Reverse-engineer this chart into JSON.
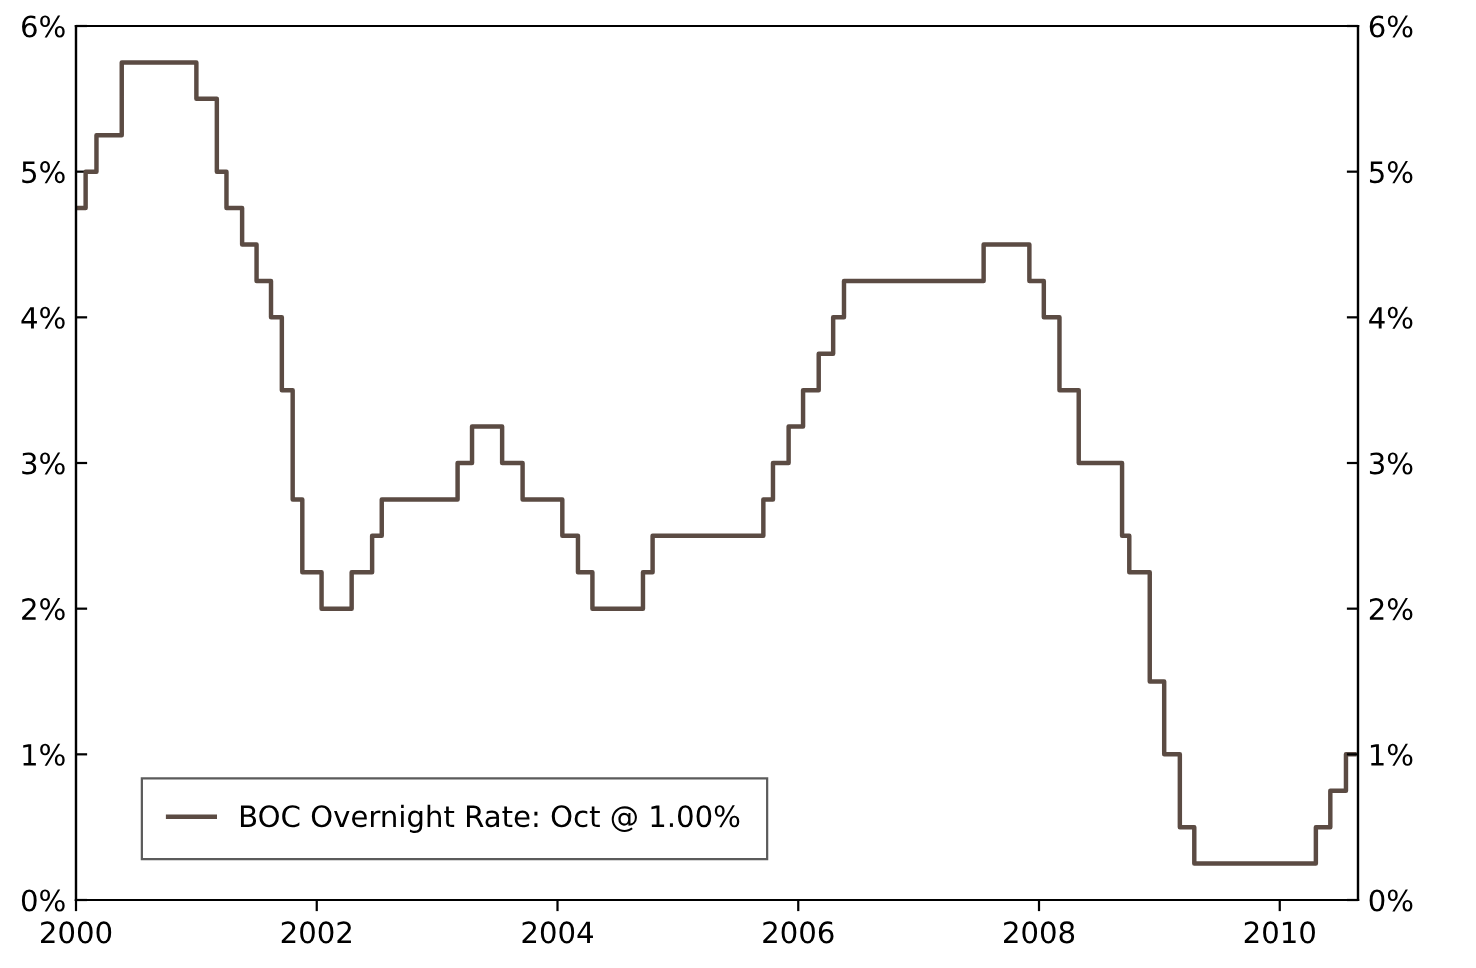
{
  "chart_data": {
    "type": "step",
    "x": [
      2000.0,
      2000.08,
      2000.17,
      2000.38,
      2001.0,
      2001.17,
      2001.25,
      2001.38,
      2001.5,
      2001.62,
      2001.71,
      2001.8,
      2001.88,
      2002.04,
      2002.29,
      2002.46,
      2002.54,
      2003.17,
      2003.29,
      2003.54,
      2003.71,
      2004.04,
      2004.17,
      2004.29,
      2004.71,
      2004.79,
      2005.71,
      2005.79,
      2005.92,
      2006.04,
      2006.17,
      2006.29,
      2006.38,
      2007.54,
      2007.92,
      2008.04,
      2008.17,
      2008.33,
      2008.69,
      2008.75,
      2008.92,
      2009.04,
      2009.17,
      2009.29,
      2010.3,
      2010.42,
      2010.55,
      2010.62
    ],
    "series": [
      {
        "name": "BOC Overnight Rate: Oct @ 1.00%",
        "color": "#5b4b43",
        "values": [
          4.75,
          5.0,
          5.25,
          5.75,
          5.5,
          5.0,
          4.75,
          4.5,
          4.25,
          4.0,
          3.5,
          2.75,
          2.25,
          2.0,
          2.25,
          2.5,
          2.75,
          3.0,
          3.25,
          3.0,
          2.75,
          2.5,
          2.25,
          2.0,
          2.25,
          2.5,
          2.75,
          3.0,
          3.25,
          3.5,
          3.75,
          4.0,
          4.25,
          4.5,
          4.25,
          4.0,
          3.5,
          3.0,
          2.5,
          2.25,
          1.5,
          1.0,
          0.5,
          0.25,
          0.5,
          0.75,
          1.0,
          1.0
        ]
      }
    ],
    "xlim": [
      2000,
      2010.65
    ],
    "xticks": [
      2000,
      2002,
      2004,
      2006,
      2008,
      2010
    ],
    "ylim": [
      0,
      6
    ],
    "yticks": [
      {
        "value": 0,
        "label": "0%"
      },
      {
        "value": 1,
        "label": "1%"
      },
      {
        "value": 2,
        "label": "2%"
      },
      {
        "value": 3,
        "label": "3%"
      },
      {
        "value": 4,
        "label": "4%"
      },
      {
        "value": 5,
        "label": "5%"
      },
      {
        "value": 6,
        "label": "6%"
      }
    ],
    "y2lim": [
      0,
      6
    ],
    "y2ticks": [
      {
        "value": 0,
        "label": "0%"
      },
      {
        "value": 1,
        "label": "1%"
      },
      {
        "value": 2,
        "label": "2%"
      },
      {
        "value": 3,
        "label": "3%"
      },
      {
        "value": 4,
        "label": "4%"
      },
      {
        "value": 5,
        "label": "5%"
      },
      {
        "value": 6,
        "label": "6%"
      }
    ],
    "grid": false,
    "legend": "bottom left",
    "line_style": "solid"
  }
}
